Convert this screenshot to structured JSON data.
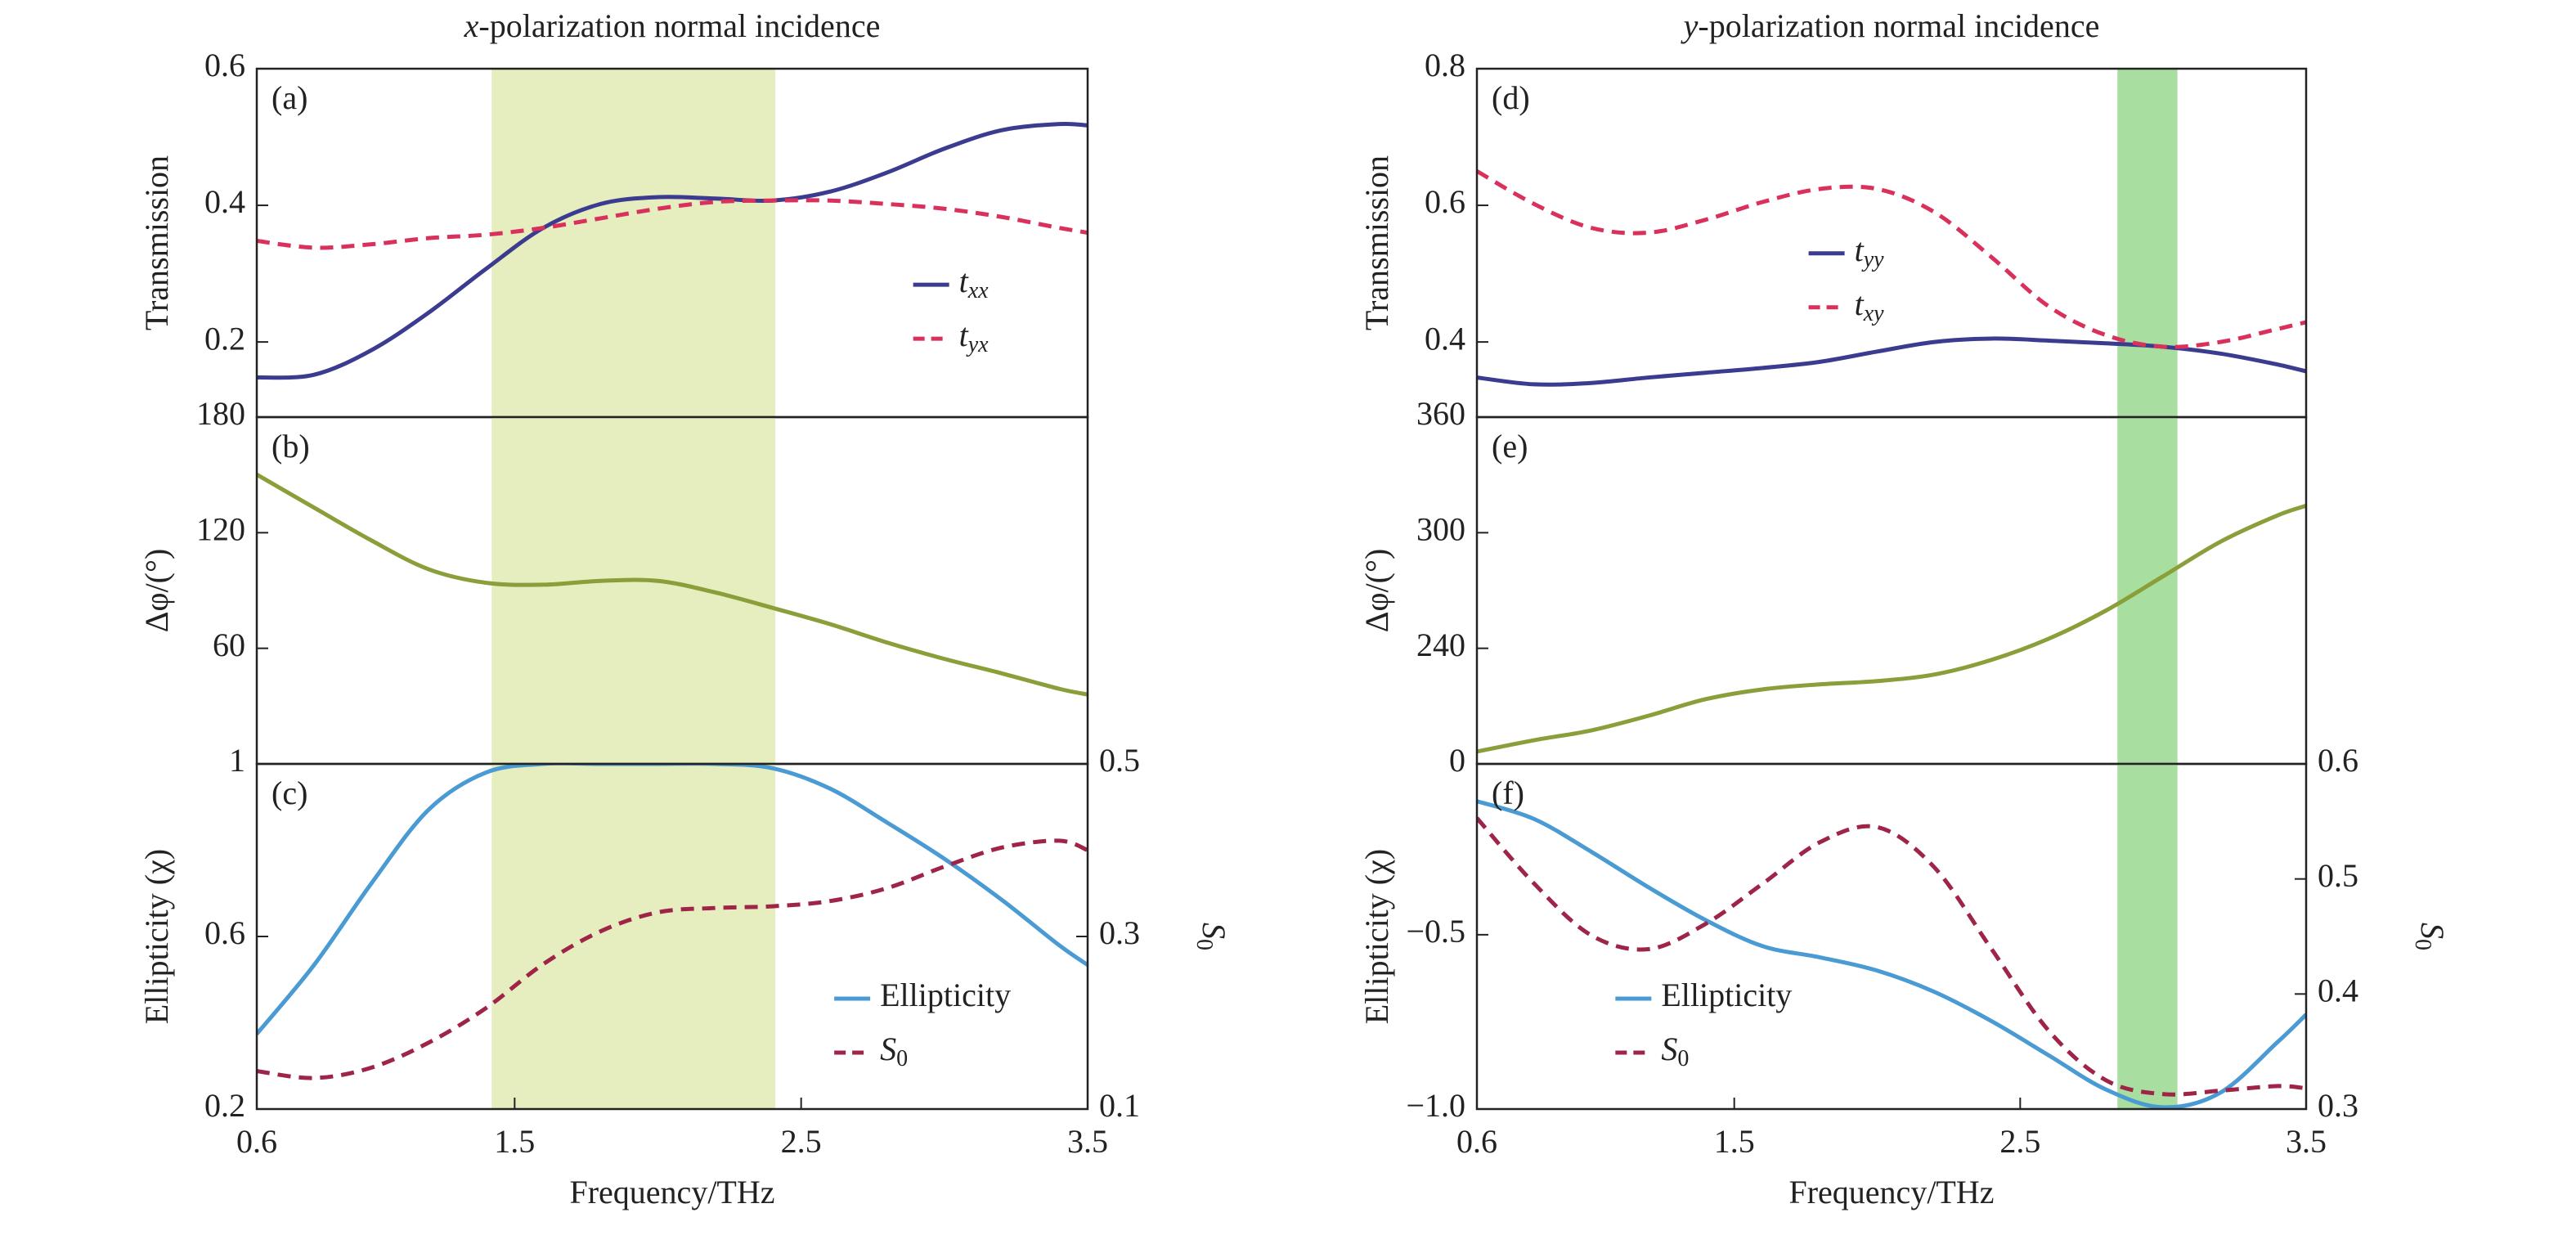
{
  "chart_data": [
    {
      "type": "line",
      "title": "x-polarization normal incidence",
      "label": "(a)",
      "ylabel": "Transmission",
      "x": [
        0.6,
        0.8,
        1.0,
        1.2,
        1.4,
        1.6,
        1.8,
        2.0,
        2.2,
        2.4,
        2.6,
        2.8,
        3.0,
        3.2,
        3.4,
        3.5
      ],
      "xlim": [
        0.6,
        3.5
      ],
      "ylim": [
        0.09,
        0.6
      ],
      "yticks": [
        0.2,
        0.4,
        0.6
      ],
      "highlight": [
        1.42,
        2.41
      ],
      "highlight_color": "#e6edbf",
      "legend": "center-right",
      "series": [
        {
          "name": "txx",
          "color": "#3b3b8f",
          "style": "solid",
          "values": [
            0.148,
            0.152,
            0.188,
            0.243,
            0.307,
            0.367,
            0.402,
            0.412,
            0.41,
            0.407,
            0.42,
            0.448,
            0.483,
            0.51,
            0.519,
            0.517
          ]
        },
        {
          "name": "tyx",
          "color": "#d9305c",
          "style": "dashed",
          "values": [
            0.348,
            0.338,
            0.343,
            0.352,
            0.357,
            0.367,
            0.381,
            0.395,
            0.405,
            0.407,
            0.407,
            0.402,
            0.395,
            0.383,
            0.367,
            0.36
          ]
        }
      ]
    },
    {
      "type": "line",
      "label": "(b)",
      "ylabel": "Δφ/(°)",
      "x": [
        0.6,
        0.8,
        1.0,
        1.2,
        1.4,
        1.6,
        1.8,
        2.0,
        2.2,
        2.4,
        2.6,
        2.8,
        3.0,
        3.2,
        3.4,
        3.5
      ],
      "xlim": [
        0.6,
        3.5
      ],
      "ylim": [
        0,
        180
      ],
      "yticks": [
        60,
        120,
        180
      ],
      "highlight": [
        1.42,
        2.41
      ],
      "highlight_color": "#e6edbf",
      "series": [
        {
          "color": "#8a9e3a",
          "style": "solid",
          "values": [
            150.2,
            133,
            116,
            101,
            94,
            93,
            95,
            95,
            89,
            81,
            72.6,
            63,
            54.5,
            47,
            39,
            36
          ]
        }
      ]
    },
    {
      "type": "line",
      "label": "(c)",
      "ylabel": "Ellipticity (χ)",
      "y2label": "S0",
      "xlabel": "Frequency/THz",
      "x": [
        0.6,
        0.8,
        1.0,
        1.2,
        1.4,
        1.6,
        1.8,
        2.0,
        2.2,
        2.4,
        2.6,
        2.8,
        3.0,
        3.2,
        3.4,
        3.5
      ],
      "xlim": [
        0.6,
        3.5
      ],
      "xticks": [
        0.6,
        1.5,
        2.5,
        3.5
      ],
      "ylim": [
        0.2,
        1.0
      ],
      "yticks": [
        0.2,
        0.6,
        1.0
      ],
      "y2lim": [
        0.1,
        0.5
      ],
      "y2ticks": [
        0.1,
        0.3,
        0.5
      ],
      "highlight": [
        1.42,
        2.41
      ],
      "highlight_color": "#e6edbf",
      "legend": "lower-right",
      "series": [
        {
          "name": "Ellipticity",
          "color": "#4a9bd4",
          "style": "solid",
          "values": [
            0.374,
            0.534,
            0.723,
            0.894,
            0.98,
            1.0,
            1.0,
            1.0,
            1.0,
            0.99,
            0.943,
            0.864,
            0.78,
            0.685,
            0.58,
            0.534
          ]
        },
        {
          "name": "S0",
          "color": "#9e2448",
          "style": "dashed",
          "axis": "y2",
          "values": [
            0.144,
            0.136,
            0.148,
            0.177,
            0.217,
            0.268,
            0.306,
            0.328,
            0.333,
            0.335,
            0.341,
            0.356,
            0.381,
            0.403,
            0.411,
            0.4
          ]
        }
      ]
    },
    {
      "type": "line",
      "title": "y-polarization normal incidence",
      "label": "(d)",
      "ylabel": "Transmission",
      "x": [
        0.6,
        0.8,
        1.0,
        1.2,
        1.4,
        1.6,
        1.8,
        2.0,
        2.2,
        2.4,
        2.6,
        2.8,
        3.0,
        3.2,
        3.4,
        3.5
      ],
      "xlim": [
        0.6,
        3.5
      ],
      "ylim": [
        0.29,
        0.8
      ],
      "yticks": [
        0.4,
        0.6,
        0.8
      ],
      "highlight": [
        2.84,
        3.05
      ],
      "highlight_color": "#a8dfa0",
      "legend": "center",
      "series": [
        {
          "name": "tyy",
          "color": "#3b3b8f",
          "style": "solid",
          "values": [
            0.348,
            0.338,
            0.34,
            0.348,
            0.355,
            0.362,
            0.371,
            0.386,
            0.4,
            0.405,
            0.402,
            0.398,
            0.393,
            0.383,
            0.367,
            0.357
          ]
        },
        {
          "name": "txy",
          "color": "#d9305c",
          "style": "dashed",
          "values": [
            0.65,
            0.602,
            0.567,
            0.56,
            0.579,
            0.605,
            0.624,
            0.624,
            0.59,
            0.524,
            0.452,
            0.41,
            0.393,
            0.4,
            0.419,
            0.429
          ]
        }
      ]
    },
    {
      "type": "line",
      "label": "(e)",
      "ylabel": "Δφ/(°)",
      "x": [
        0.6,
        0.8,
        1.0,
        1.2,
        1.4,
        1.6,
        1.8,
        2.0,
        2.2,
        2.4,
        2.6,
        2.8,
        3.0,
        3.2,
        3.4,
        3.5
      ],
      "xlim": [
        0.6,
        3.5
      ],
      "ylim": [
        180,
        360
      ],
      "yticks": [
        {
          "value": 180,
          "label": "0"
        },
        240,
        300,
        360
      ],
      "highlight": [
        2.84,
        3.05
      ],
      "highlight_color": "#a8dfa0",
      "series": [
        {
          "color": "#8a9e3a",
          "style": "solid",
          "values": [
            186.4,
            192.3,
            197.4,
            205,
            213.6,
            218.7,
            221.3,
            223,
            226.4,
            234,
            245,
            259.6,
            277.4,
            295.3,
            309,
            314
          ]
        }
      ]
    },
    {
      "type": "line",
      "label": "(f)",
      "ylabel": "Ellipticity (χ)",
      "y2label": "S0",
      "xlabel": "Frequency/THz",
      "x": [
        0.6,
        0.8,
        1.0,
        1.2,
        1.4,
        1.6,
        1.8,
        2.0,
        2.2,
        2.4,
        2.6,
        2.8,
        3.0,
        3.2,
        3.4,
        3.5
      ],
      "xlim": [
        0.6,
        3.5
      ],
      "xticks": [
        0.6,
        1.5,
        2.5,
        3.5
      ],
      "ylim": [
        -1.0,
        -0.01
      ],
      "yticks": [
        {
          "value": -1.0,
          "label": "−1.0"
        },
        {
          "value": -0.5,
          "label": "−0.5"
        }
      ],
      "y2lim": [
        0.3,
        0.6
      ],
      "y2ticks": [
        0.3,
        0.4,
        0.5,
        0.6
      ],
      "highlight": [
        2.84,
        3.05
      ],
      "highlight_color": "#a8dfa0",
      "legend": "lower-center",
      "series": [
        {
          "name": "Ellipticity",
          "color": "#4a9bd4",
          "style": "solid",
          "values": [
            -0.117,
            -0.168,
            -0.262,
            -0.364,
            -0.458,
            -0.533,
            -0.565,
            -0.603,
            -0.664,
            -0.748,
            -0.846,
            -0.944,
            -0.995,
            -0.953,
            -0.808,
            -0.729
          ]
        },
        {
          "name": "S0",
          "color": "#9e2448",
          "style": "dashed",
          "axis": "y2",
          "values": [
            0.553,
            0.496,
            0.451,
            0.439,
            0.461,
            0.496,
            0.532,
            0.545,
            0.51,
            0.439,
            0.368,
            0.325,
            0.313,
            0.316,
            0.32,
            0.318
          ]
        }
      ]
    }
  ]
}
